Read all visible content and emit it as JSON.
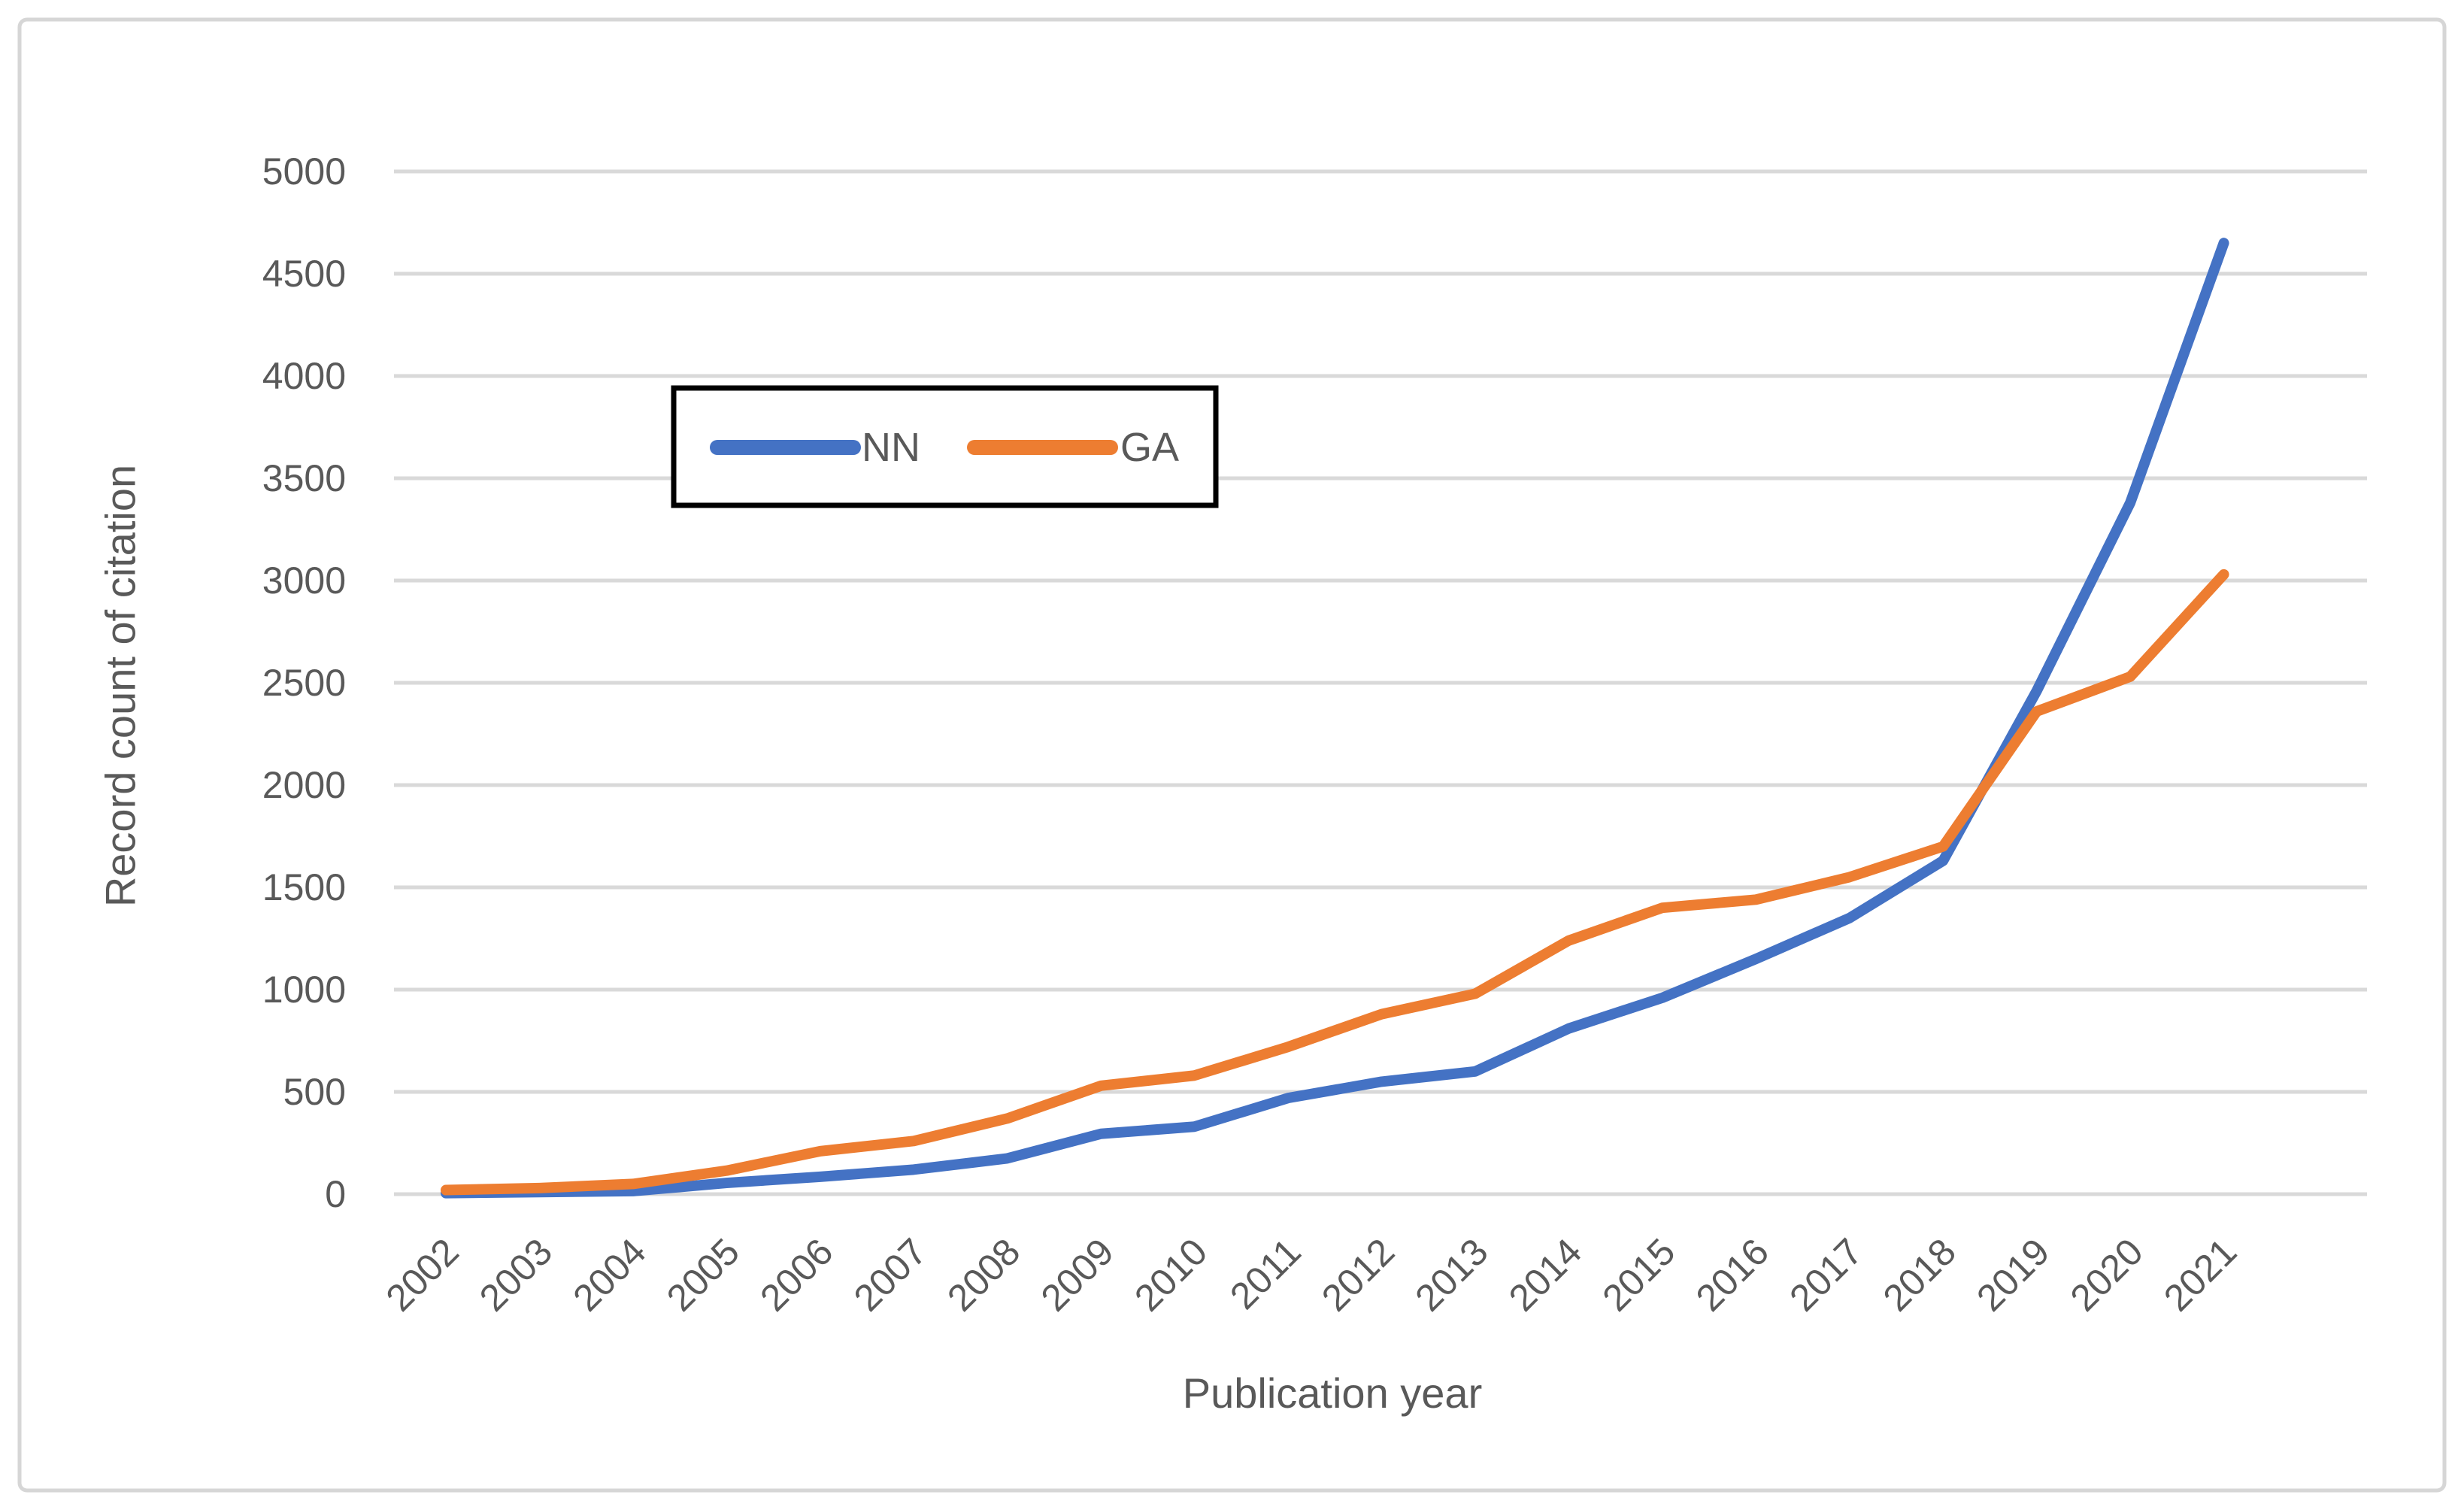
{
  "figure": {
    "background": "#ffffff",
    "border_color": "#d6d6d6"
  },
  "chart_data": {
    "type": "line",
    "title": "",
    "xlabel": "Publication year",
    "ylabel": "Record count of citation",
    "categories": [
      "2002",
      "2003",
      "2004",
      "2005",
      "2006",
      "2007",
      "2008",
      "2009",
      "2010",
      "2011",
      "2012",
      "2013",
      "2014",
      "2015",
      "2016",
      "2017",
      "2018",
      "2019",
      "2020",
      "2021"
    ],
    "series": [
      {
        "name": "NN",
        "color": "#4472C4",
        "values": [
          5,
          10,
          15,
          55,
          85,
          120,
          175,
          295,
          330,
          470,
          550,
          600,
          810,
          960,
          1150,
          1350,
          1630,
          2460,
          3380,
          4650
        ]
      },
      {
        "name": "GA",
        "color": "#ED7D31",
        "values": [
          20,
          30,
          50,
          115,
          210,
          260,
          370,
          530,
          580,
          720,
          880,
          980,
          1240,
          1400,
          1440,
          1550,
          1700,
          2360,
          2530,
          3030
        ]
      }
    ],
    "ylim": [
      0,
      5000
    ],
    "ytick_step": 500,
    "ytick_labels": [
      "0",
      "500",
      "1000",
      "1500",
      "2000",
      "2500",
      "3000",
      "3500",
      "4000",
      "4500",
      "5000"
    ],
    "grid": "horizontal",
    "gridline_color": "#d9d9d9",
    "tick_label_color": "#595959",
    "axis_title_color": "#595959",
    "x_tick_rotation_deg": -45,
    "legend": {
      "position": "upper-left-inside",
      "border_color": "#000000",
      "background": "#ffffff",
      "entries": [
        {
          "label": "NN",
          "color": "#4472C4"
        },
        {
          "label": "GA",
          "color": "#ED7D31"
        }
      ]
    }
  }
}
